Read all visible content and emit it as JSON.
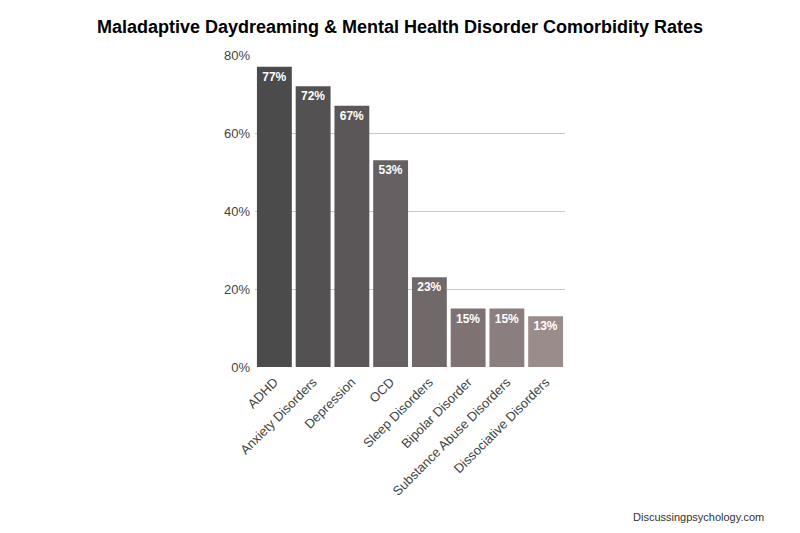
{
  "chart_data": {
    "type": "bar",
    "title": "Maladaptive Daydreaming & Mental Health Disorder Comorbidity Rates",
    "categories": [
      "ADHD",
      "Anxiety Disorders",
      "Depression",
      "OCD",
      "Sleep Disorders",
      "Bipolar Disorder",
      "Substance Abuse Disorders",
      "Dissociative Disorders"
    ],
    "values": [
      77,
      72,
      67,
      53,
      23,
      15,
      15,
      13
    ],
    "value_labels": [
      "77%",
      "72%",
      "67%",
      "53%",
      "23%",
      "15%",
      "15%",
      "13%"
    ],
    "colors": [
      "#4b4b4b",
      "#535151",
      "#5b5758",
      "#666062",
      "#716869",
      "#7e7273",
      "#8a7e7e",
      "#9a8c8a"
    ],
    "ylim": [
      0,
      80
    ],
    "yticks": [
      {
        "value": 0,
        "label": "0%"
      },
      {
        "value": 20,
        "label": "20%"
      },
      {
        "value": 40,
        "label": "40%"
      },
      {
        "value": 60,
        "label": "60%"
      },
      {
        "value": 80,
        "label": "80%"
      }
    ],
    "grid": true,
    "data_labels": true,
    "annotations": [
      "Discussingpsychology.com"
    ]
  }
}
